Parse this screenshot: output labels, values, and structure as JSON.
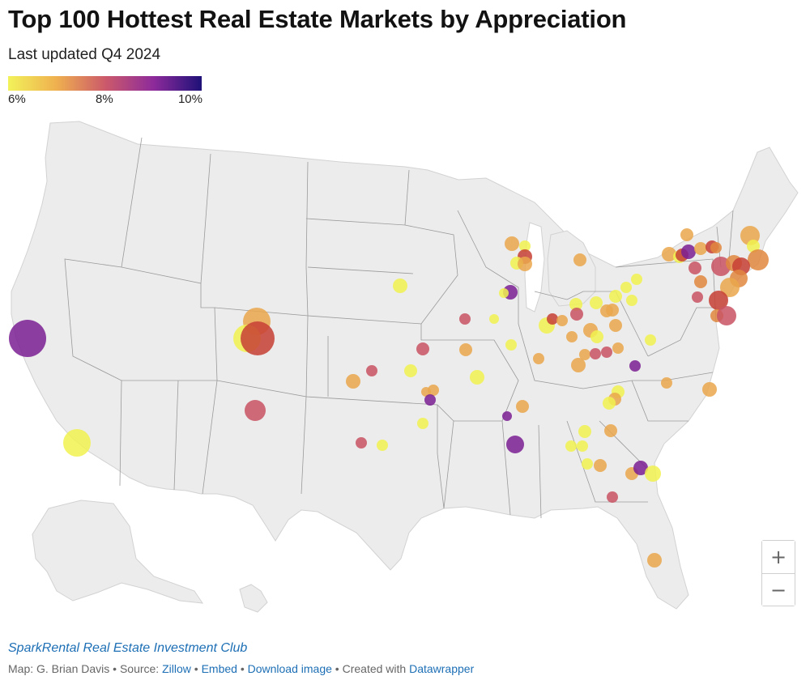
{
  "header": {
    "title": "Top 100 Hottest Real Estate Markets by Appreciation",
    "subtitle": "Last updated Q4 2024"
  },
  "legend": {
    "labels": [
      "6%",
      "8%",
      "10%"
    ],
    "colors": [
      "#f2f25a",
      "#efb04f",
      "#cc5a6a",
      "#8e2b9b",
      "#1e1178"
    ]
  },
  "map": {
    "region": "United States (lower 48)",
    "colors": {
      "yellow": "#f1f24f",
      "amber": "#eaa74c",
      "orange": "#e1873e",
      "rose": "#c95363",
      "red": "#c73f35",
      "purple": "#7a1f93"
    }
  },
  "zoom": {
    "in_label": "+",
    "out_label": "−"
  },
  "footer": {
    "club": "SparkRental Real Estate Investment Club",
    "map_by": "Map: G. Brian Davis",
    "source_prefix": "Source:",
    "source": "Zillow",
    "embed": "Embed",
    "download": "Download image",
    "created_prefix": "Created with",
    "created": "Datawrapper",
    "sep": "•"
  }
}
